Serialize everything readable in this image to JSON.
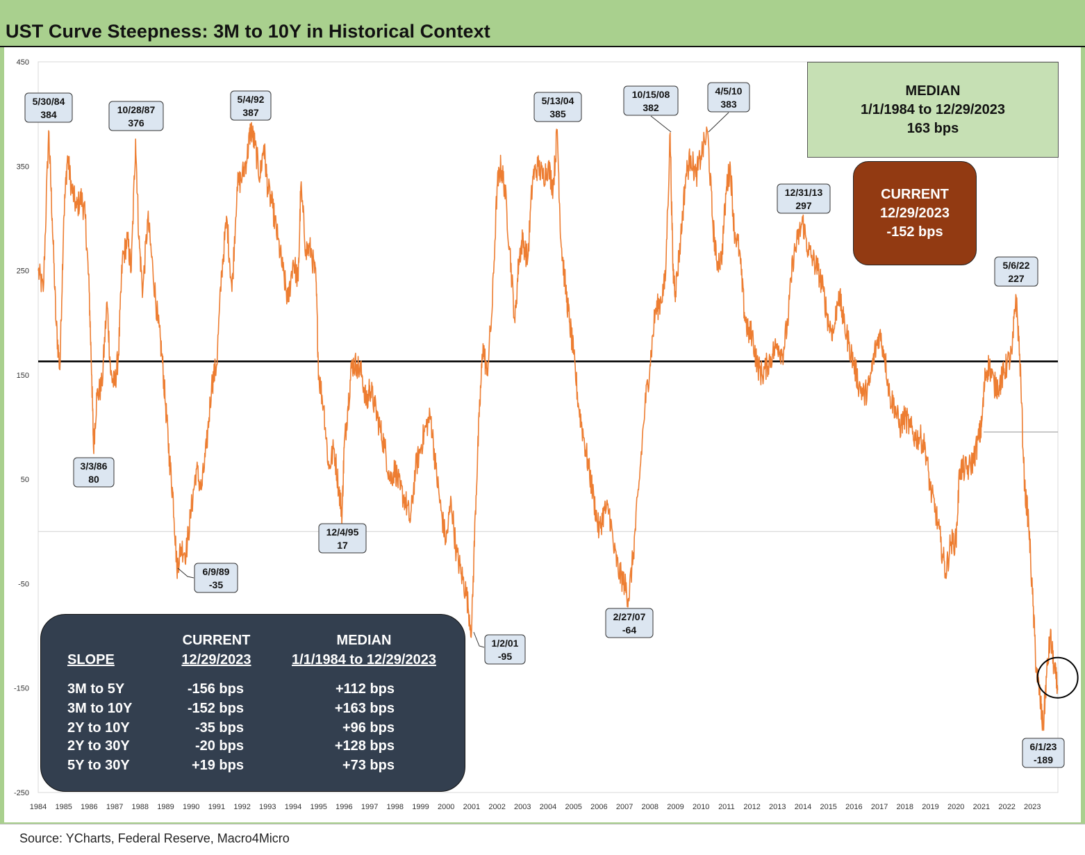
{
  "title": "UST Curve Steepness: 3M to 10Y in Historical Context",
  "source": "Source: YCharts, Federal Reserve, Macro4Micro",
  "colors": {
    "frame": "#a9d08e",
    "line": "#ed7d31",
    "median_box": "#c6e0b4",
    "current_box": "#923a12",
    "table_bg": "#333f4f",
    "label_box": "#dce6f1"
  },
  "median_box": {
    "line1": "MEDIAN",
    "line2": "1/1/1984 to 12/29/2023",
    "line3": "163 bps"
  },
  "current_box": {
    "line1": "CURRENT",
    "line2": "12/29/2023",
    "line3": "-152 bps"
  },
  "slope_table": {
    "headers": {
      "slope": "SLOPE",
      "current_top": "CURRENT",
      "current_bottom": "12/29/2023",
      "median_top": "MEDIAN",
      "median_bottom": "1/1/1984 to 12/29/2023"
    },
    "rows": [
      {
        "slope": "3M to 5Y",
        "current": "-156 bps",
        "median": "+112 bps"
      },
      {
        "slope": "3M to 10Y",
        "current": "-152 bps",
        "median": "+163 bps"
      },
      {
        "slope": "2Y to 10Y",
        "current": "-35 bps",
        "median": "+96 bps"
      },
      {
        "slope": "2Y to 30Y",
        "current": "-20 bps",
        "median": "+128 bps"
      },
      {
        "slope": "5Y to 30Y",
        "current": "+19 bps",
        "median": "+73 bps"
      }
    ]
  },
  "chart_data": {
    "type": "line",
    "title": "UST Curve Steepness: 3M to 10Y in Historical Context",
    "xlabel": "",
    "ylabel": "",
    "xlim": [
      1984.0,
      2024.0
    ],
    "ylim": [
      -250,
      450
    ],
    "yticks": [
      450,
      350,
      250,
      150,
      50,
      -50,
      -150,
      -250
    ],
    "xticks": [
      "1984",
      "1985",
      "1986",
      "1987",
      "1988",
      "1989",
      "1990",
      "1991",
      "1992",
      "1993",
      "1994",
      "1995",
      "1996",
      "1997",
      "1998",
      "1999",
      "2000",
      "2001",
      "2002",
      "2003",
      "2004",
      "2005",
      "2006",
      "2007",
      "2008",
      "2009",
      "2010",
      "2011",
      "2012",
      "2013",
      "2014",
      "2015",
      "2016",
      "2017",
      "2018",
      "2019",
      "2020",
      "2021",
      "2022",
      "2023"
    ],
    "median_line": 163,
    "zero_line": 0,
    "series": [
      {
        "name": "3M to 10Y (bps)",
        "points": [
          [
            1984.0,
            250
          ],
          [
            1984.2,
            230
          ],
          [
            1984.41,
            384
          ],
          [
            1984.55,
            300
          ],
          [
            1984.7,
            200
          ],
          [
            1984.85,
            155
          ],
          [
            1985.0,
            300
          ],
          [
            1985.15,
            360
          ],
          [
            1985.3,
            330
          ],
          [
            1985.5,
            310
          ],
          [
            1985.7,
            320
          ],
          [
            1985.85,
            300
          ],
          [
            1986.0,
            230
          ],
          [
            1986.1,
            150
          ],
          [
            1986.17,
            80
          ],
          [
            1986.3,
            130
          ],
          [
            1986.5,
            140
          ],
          [
            1986.7,
            220
          ],
          [
            1986.85,
            150
          ],
          [
            1987.0,
            140
          ],
          [
            1987.15,
            170
          ],
          [
            1987.3,
            260
          ],
          [
            1987.5,
            280
          ],
          [
            1987.65,
            250
          ],
          [
            1987.82,
            376
          ],
          [
            1987.95,
            280
          ],
          [
            1988.1,
            230
          ],
          [
            1988.3,
            300
          ],
          [
            1988.5,
            250
          ],
          [
            1988.7,
            200
          ],
          [
            1988.85,
            170
          ],
          [
            1989.0,
            120
          ],
          [
            1989.15,
            70
          ],
          [
            1989.3,
            30
          ],
          [
            1989.44,
            -35
          ],
          [
            1989.6,
            -15
          ],
          [
            1989.8,
            -20
          ],
          [
            1990.0,
            20
          ],
          [
            1990.2,
            60
          ],
          [
            1990.4,
            40
          ],
          [
            1990.6,
            80
          ],
          [
            1990.8,
            140
          ],
          [
            1991.0,
            160
          ],
          [
            1991.2,
            250
          ],
          [
            1991.4,
            300
          ],
          [
            1991.6,
            230
          ],
          [
            1991.8,
            330
          ],
          [
            1992.0,
            340
          ],
          [
            1992.2,
            360
          ],
          [
            1992.34,
            387
          ],
          [
            1992.5,
            370
          ],
          [
            1992.7,
            340
          ],
          [
            1992.85,
            370
          ],
          [
            1993.0,
            330
          ],
          [
            1993.2,
            310
          ],
          [
            1993.4,
            280
          ],
          [
            1993.6,
            250
          ],
          [
            1993.8,
            220
          ],
          [
            1994.0,
            260
          ],
          [
            1994.2,
            240
          ],
          [
            1994.3,
            330
          ],
          [
            1994.5,
            270
          ],
          [
            1994.7,
            270
          ],
          [
            1994.9,
            240
          ],
          [
            1995.0,
            150
          ],
          [
            1995.2,
            120
          ],
          [
            1995.4,
            60
          ],
          [
            1995.6,
            80
          ],
          [
            1995.8,
            40
          ],
          [
            1995.92,
            17
          ],
          [
            1996.0,
            80
          ],
          [
            1996.15,
            120
          ],
          [
            1996.3,
            160
          ],
          [
            1996.5,
            160
          ],
          [
            1996.7,
            150
          ],
          [
            1996.9,
            120
          ],
          [
            1997.0,
            140
          ],
          [
            1997.2,
            120
          ],
          [
            1997.4,
            100
          ],
          [
            1997.6,
            80
          ],
          [
            1997.8,
            50
          ],
          [
            1998.0,
            60
          ],
          [
            1998.2,
            40
          ],
          [
            1998.4,
            30
          ],
          [
            1998.6,
            10
          ],
          [
            1998.8,
            60
          ],
          [
            1999.0,
            80
          ],
          [
            1999.2,
            100
          ],
          [
            1999.4,
            110
          ],
          [
            1999.6,
            60
          ],
          [
            1999.8,
            20
          ],
          [
            2000.0,
            -10
          ],
          [
            2000.2,
            30
          ],
          [
            2000.4,
            -20
          ],
          [
            2000.6,
            -40
          ],
          [
            2000.8,
            -60
          ],
          [
            2001.0,
            -95
          ],
          [
            2001.15,
            20
          ],
          [
            2001.3,
            110
          ],
          [
            2001.45,
            180
          ],
          [
            2001.6,
            150
          ],
          [
            2001.8,
            210
          ],
          [
            2002.0,
            330
          ],
          [
            2002.15,
            350
          ],
          [
            2002.3,
            330
          ],
          [
            2002.5,
            270
          ],
          [
            2002.7,
            200
          ],
          [
            2002.85,
            260
          ],
          [
            2003.0,
            280
          ],
          [
            2003.2,
            260
          ],
          [
            2003.4,
            340
          ],
          [
            2003.6,
            350
          ],
          [
            2003.8,
            340
          ],
          [
            2004.0,
            350
          ],
          [
            2004.2,
            330
          ],
          [
            2004.36,
            385
          ],
          [
            2004.5,
            280
          ],
          [
            2004.7,
            230
          ],
          [
            2004.85,
            200
          ],
          [
            2005.0,
            170
          ],
          [
            2005.2,
            120
          ],
          [
            2005.4,
            90
          ],
          [
            2005.6,
            60
          ],
          [
            2005.8,
            30
          ],
          [
            2006.0,
            0
          ],
          [
            2006.2,
            20
          ],
          [
            2006.4,
            20
          ],
          [
            2006.6,
            -20
          ],
          [
            2006.8,
            -40
          ],
          [
            2007.0,
            -50
          ],
          [
            2007.16,
            -64
          ],
          [
            2007.35,
            -20
          ],
          [
            2007.55,
            40
          ],
          [
            2007.8,
            120
          ],
          [
            2008.0,
            160
          ],
          [
            2008.2,
            210
          ],
          [
            2008.4,
            220
          ],
          [
            2008.6,
            240
          ],
          [
            2008.79,
            382
          ],
          [
            2008.9,
            250
          ],
          [
            2009.0,
            230
          ],
          [
            2009.2,
            280
          ],
          [
            2009.4,
            340
          ],
          [
            2009.6,
            360
          ],
          [
            2009.8,
            340
          ],
          [
            2010.0,
            360
          ],
          [
            2010.26,
            383
          ],
          [
            2010.45,
            300
          ],
          [
            2010.6,
            260
          ],
          [
            2010.8,
            260
          ],
          [
            2011.0,
            330
          ],
          [
            2011.15,
            350
          ],
          [
            2011.3,
            290
          ],
          [
            2011.5,
            270
          ],
          [
            2011.7,
            210
          ],
          [
            2011.85,
            190
          ],
          [
            2012.0,
            190
          ],
          [
            2012.2,
            160
          ],
          [
            2012.4,
            150
          ],
          [
            2012.6,
            160
          ],
          [
            2012.8,
            170
          ],
          [
            2013.0,
            180
          ],
          [
            2013.2,
            170
          ],
          [
            2013.4,
            200
          ],
          [
            2013.6,
            260
          ],
          [
            2013.8,
            280
          ],
          [
            2013.99,
            297
          ],
          [
            2014.2,
            270
          ],
          [
            2014.4,
            260
          ],
          [
            2014.6,
            250
          ],
          [
            2014.8,
            230
          ],
          [
            2015.0,
            200
          ],
          [
            2015.2,
            190
          ],
          [
            2015.4,
            230
          ],
          [
            2015.6,
            200
          ],
          [
            2015.8,
            180
          ],
          [
            2016.0,
            160
          ],
          [
            2016.2,
            140
          ],
          [
            2016.4,
            130
          ],
          [
            2016.6,
            140
          ],
          [
            2016.8,
            170
          ],
          [
            2017.0,
            190
          ],
          [
            2017.2,
            170
          ],
          [
            2017.4,
            130
          ],
          [
            2017.6,
            120
          ],
          [
            2017.8,
            100
          ],
          [
            2018.0,
            110
          ],
          [
            2018.2,
            100
          ],
          [
            2018.4,
            90
          ],
          [
            2018.6,
            90
          ],
          [
            2018.8,
            80
          ],
          [
            2019.0,
            40
          ],
          [
            2019.2,
            20
          ],
          [
            2019.4,
            -10
          ],
          [
            2019.6,
            -40
          ],
          [
            2019.8,
            -10
          ],
          [
            2020.0,
            -10
          ],
          [
            2020.15,
            60
          ],
          [
            2020.3,
            60
          ],
          [
            2020.5,
            60
          ],
          [
            2020.7,
            70
          ],
          [
            2020.9,
            90
          ],
          [
            2021.0,
            100
          ],
          [
            2021.15,
            150
          ],
          [
            2021.3,
            160
          ],
          [
            2021.5,
            140
          ],
          [
            2021.7,
            140
          ],
          [
            2021.85,
            150
          ],
          [
            2022.0,
            160
          ],
          [
            2022.2,
            170
          ],
          [
            2022.35,
            227
          ],
          [
            2022.5,
            170
          ],
          [
            2022.7,
            40
          ],
          [
            2022.85,
            10
          ],
          [
            2023.0,
            -60
          ],
          [
            2023.15,
            -130
          ],
          [
            2023.3,
            -160
          ],
          [
            2023.42,
            -189
          ],
          [
            2023.55,
            -140
          ],
          [
            2023.7,
            -100
          ],
          [
            2023.85,
            -130
          ],
          [
            2023.99,
            -152
          ]
        ]
      }
    ],
    "annotations": [
      {
        "date": "5/30/84",
        "value": 384
      },
      {
        "date": "10/28/87",
        "value": 376
      },
      {
        "date": "3/3/86",
        "value": 80
      },
      {
        "date": "5/4/92",
        "value": 387
      },
      {
        "date": "6/9/89",
        "value": -35
      },
      {
        "date": "12/4/95",
        "value": 17
      },
      {
        "date": "1/2/01",
        "value": -95
      },
      {
        "date": "5/13/04",
        "value": 385
      },
      {
        "date": "2/27/07",
        "value": -64
      },
      {
        "date": "10/15/08",
        "value": 382
      },
      {
        "date": "4/5/10",
        "value": 383
      },
      {
        "date": "12/31/13",
        "value": 297
      },
      {
        "date": "5/6/22",
        "value": 227
      },
      {
        "date": "6/1/23",
        "value": -189
      }
    ]
  }
}
